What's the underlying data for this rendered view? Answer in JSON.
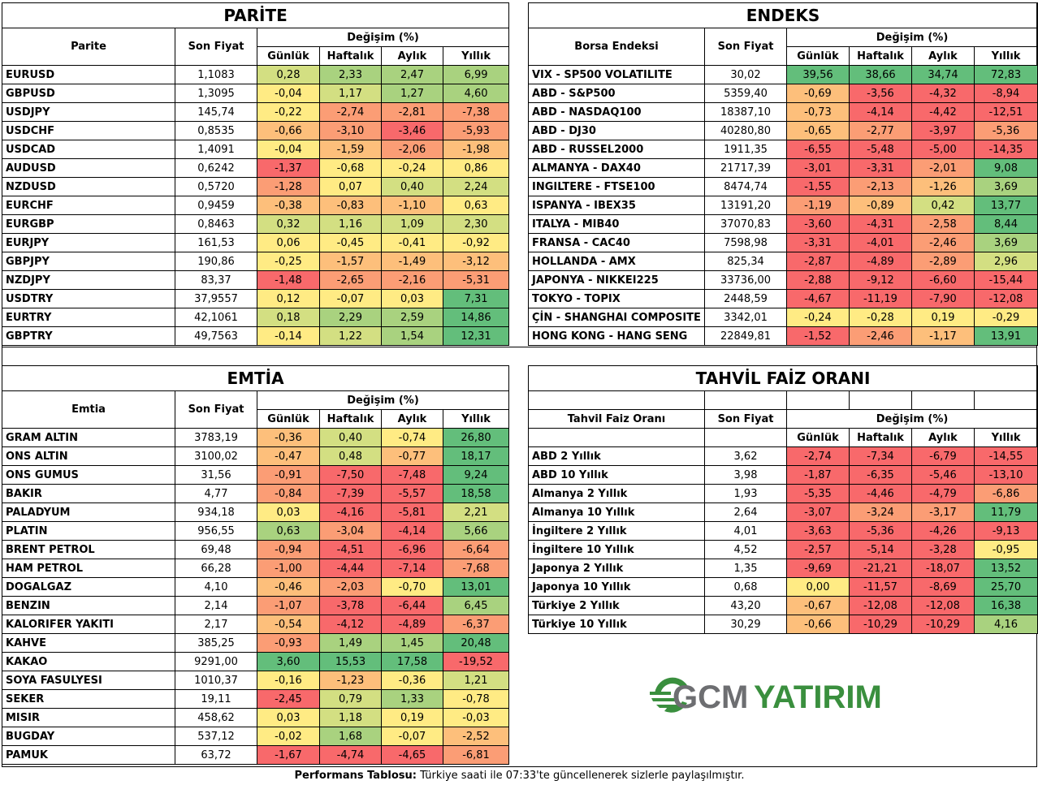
{
  "colors": {
    "strong_green": "#63be7b",
    "green": "#a9d27f",
    "light_green": "#d3df82",
    "yellow": "#ffeb84",
    "orange": "#fdbf7b",
    "dark_orange": "#fb9d75",
    "red": "#f8696b"
  },
  "headers": {
    "last_price": "Son Fiyat",
    "change": "Değişim (%)",
    "daily": "Günlük",
    "weekly": "Haftalık",
    "monthly": "Aylık",
    "yearly": "Yıllık"
  },
  "parite": {
    "title": "PARİTE",
    "col_name": "Parite",
    "rows": [
      {
        "name": "EURUSD",
        "price": "1,1083",
        "d": "0,28",
        "w": "2,33",
        "m": "2,47",
        "y": "6,99"
      },
      {
        "name": "GBPUSD",
        "price": "1,3095",
        "d": "-0,04",
        "w": "1,17",
        "m": "1,27",
        "y": "4,60"
      },
      {
        "name": "USDJPY",
        "price": "145,74",
        "d": "-0,22",
        "w": "-2,74",
        "m": "-2,81",
        "y": "-7,38"
      },
      {
        "name": "USDCHF",
        "price": "0,8535",
        "d": "-0,66",
        "w": "-3,10",
        "m": "-3,46",
        "y": "-5,93"
      },
      {
        "name": "USDCAD",
        "price": "1,4091",
        "d": "-0,04",
        "w": "-1,59",
        "m": "-2,06",
        "y": "-1,98"
      },
      {
        "name": "AUDUSD",
        "price": "0,6242",
        "d": "-1,37",
        "w": "-0,68",
        "m": "-0,24",
        "y": "0,86"
      },
      {
        "name": "NZDUSD",
        "price": "0,5720",
        "d": "-1,28",
        "w": "0,07",
        "m": "0,40",
        "y": "2,24"
      },
      {
        "name": "EURCHF",
        "price": "0,9459",
        "d": "-0,38",
        "w": "-0,83",
        "m": "-1,10",
        "y": "0,63"
      },
      {
        "name": "EURGBP",
        "price": "0,8463",
        "d": "0,32",
        "w": "1,16",
        "m": "1,09",
        "y": "2,30"
      },
      {
        "name": "EURJPY",
        "price": "161,53",
        "d": "0,06",
        "w": "-0,45",
        "m": "-0,41",
        "y": "-0,92"
      },
      {
        "name": "GBPJPY",
        "price": "190,86",
        "d": "-0,25",
        "w": "-1,57",
        "m": "-1,49",
        "y": "-3,12"
      },
      {
        "name": "NZDJPY",
        "price": "83,37",
        "d": "-1,48",
        "w": "-2,65",
        "m": "-2,16",
        "y": "-5,31"
      },
      {
        "name": "USDTRY",
        "price": "37,9557",
        "d": "0,12",
        "w": "-0,07",
        "m": "0,03",
        "y": "7,31"
      },
      {
        "name": "EURTRY",
        "price": "42,1061",
        "d": "0,18",
        "w": "2,29",
        "m": "2,59",
        "y": "14,86"
      },
      {
        "name": "GBPTRY",
        "price": "49,7563",
        "d": "-0,14",
        "w": "1,22",
        "m": "1,54",
        "y": "12,31"
      }
    ]
  },
  "endeks": {
    "title": "ENDEKS",
    "col_name": "Borsa Endeksi",
    "rows": [
      {
        "name": "VIX  - SP500 VOLATILITE",
        "price": "30,02",
        "d": "39,56",
        "w": "38,66",
        "m": "34,74",
        "y": "72,83"
      },
      {
        "name": "ABD - S&P500",
        "price": "5359,40",
        "d": "-0,69",
        "w": "-3,56",
        "m": "-4,32",
        "y": "-8,94"
      },
      {
        "name": "ABD - NASDAQ100",
        "price": "18387,10",
        "d": "-0,73",
        "w": "-4,14",
        "m": "-4,42",
        "y": "-12,51"
      },
      {
        "name": "ABD - DJ30",
        "price": "40280,80",
        "d": "-0,65",
        "w": "-2,77",
        "m": "-3,97",
        "y": "-5,36"
      },
      {
        "name": "ABD - RUSSEL2000",
        "price": "1911,35",
        "d": "-6,55",
        "w": "-5,48",
        "m": "-5,00",
        "y": "-14,35"
      },
      {
        "name": "ALMANYA - DAX40",
        "price": "21717,39",
        "d": "-3,01",
        "w": "-3,31",
        "m": "-2,01",
        "y": "9,08"
      },
      {
        "name": "INGILTERE - FTSE100",
        "price": "8474,74",
        "d": "-1,55",
        "w": "-2,13",
        "m": "-1,26",
        "y": "3,69"
      },
      {
        "name": "ISPANYA - IBEX35",
        "price": "13191,20",
        "d": "-1,19",
        "w": "-0,89",
        "m": "0,42",
        "y": "13,77"
      },
      {
        "name": "ITALYA - MIB40",
        "price": "37070,83",
        "d": "-3,60",
        "w": "-4,31",
        "m": "-2,58",
        "y": "8,44"
      },
      {
        "name": "FRANSA - CAC40",
        "price": "7598,98",
        "d": "-3,31",
        "w": "-4,01",
        "m": "-2,46",
        "y": "3,69"
      },
      {
        "name": "HOLLANDA - AMX",
        "price": "825,34",
        "d": "-2,87",
        "w": "-4,89",
        "m": "-2,89",
        "y": "2,96"
      },
      {
        "name": "JAPONYA - NIKKEI225",
        "price": "33736,00",
        "d": "-2,88",
        "w": "-9,12",
        "m": "-6,60",
        "y": "-15,44"
      },
      {
        "name": "TOKYO - TOPIX",
        "price": "2448,59",
        "d": "-4,67",
        "w": "-11,19",
        "m": "-7,90",
        "y": "-12,08"
      },
      {
        "name": "ÇİN - SHANGHAI COMPOSITE",
        "price": "3342,01",
        "d": "-0,24",
        "w": "-0,28",
        "m": "0,19",
        "y": "-0,29"
      },
      {
        "name": "HONG KONG - HANG SENG",
        "price": "22849,81",
        "d": "-1,52",
        "w": "-2,46",
        "m": "-1,17",
        "y": "13,91"
      }
    ]
  },
  "emtia": {
    "title": "EMTİA",
    "col_name": "Emtia",
    "rows": [
      {
        "name": "GRAM ALTIN",
        "price": "3783,19",
        "d": "-0,36",
        "w": "0,40",
        "m": "-0,74",
        "y": "26,80"
      },
      {
        "name": "ONS ALTIN",
        "price": "3100,02",
        "d": "-0,47",
        "w": "0,48",
        "m": "-0,77",
        "y": "18,17"
      },
      {
        "name": "ONS GUMUS",
        "price": "31,56",
        "d": "-0,91",
        "w": "-7,50",
        "m": "-7,48",
        "y": "9,24"
      },
      {
        "name": "BAKIR",
        "price": "4,77",
        "d": "-0,84",
        "w": "-7,39",
        "m": "-5,57",
        "y": "18,58"
      },
      {
        "name": "PALADYUM",
        "price": "934,18",
        "d": "0,03",
        "w": "-4,16",
        "m": "-5,81",
        "y": "2,21"
      },
      {
        "name": "PLATIN",
        "price": "956,55",
        "d": "0,63",
        "w": "-3,04",
        "m": "-4,14",
        "y": "5,66"
      },
      {
        "name": "BRENT PETROL",
        "price": "69,48",
        "d": "-0,94",
        "w": "-4,51",
        "m": "-6,96",
        "y": "-6,64"
      },
      {
        "name": "HAM PETROL",
        "price": "66,28",
        "d": "-1,00",
        "w": "-4,44",
        "m": "-7,14",
        "y": "-7,68"
      },
      {
        "name": "DOGALGAZ",
        "price": "4,10",
        "d": "-0,46",
        "w": "-2,03",
        "m": "-0,70",
        "y": "13,01"
      },
      {
        "name": "BENZIN",
        "price": "2,14",
        "d": "-1,07",
        "w": "-3,78",
        "m": "-6,44",
        "y": "6,45"
      },
      {
        "name": "KALORIFER YAKITI",
        "price": "2,17",
        "d": "-0,54",
        "w": "-4,12",
        "m": "-4,89",
        "y": "-6,37"
      },
      {
        "name": "KAHVE",
        "price": "385,25",
        "d": "-0,93",
        "w": "1,49",
        "m": "1,45",
        "y": "20,48"
      },
      {
        "name": "KAKAO",
        "price": "9291,00",
        "d": "3,60",
        "w": "15,53",
        "m": "17,58",
        "y": "-19,52"
      },
      {
        "name": "SOYA FASULYESI",
        "price": "1010,37",
        "d": "-0,16",
        "w": "-1,23",
        "m": "-0,36",
        "y": "1,21"
      },
      {
        "name": "SEKER",
        "price": "19,11",
        "d": "-2,45",
        "w": "0,79",
        "m": "1,33",
        "y": "-0,78"
      },
      {
        "name": "MISIR",
        "price": "458,62",
        "d": "0,03",
        "w": "1,18",
        "m": "0,19",
        "y": "-0,03"
      },
      {
        "name": "BUGDAY",
        "price": "537,12",
        "d": "-0,02",
        "w": "1,68",
        "m": "-0,07",
        "y": "-2,52"
      },
      {
        "name": "PAMUK",
        "price": "63,72",
        "d": "-1,67",
        "w": "-4,74",
        "m": "-4,65",
        "y": "-6,81"
      }
    ]
  },
  "tahvil": {
    "title": "TAHVİL FAİZ ORANI",
    "col_name": "Tahvil Faiz Oranı",
    "rows": [
      {
        "name": "ABD 2 Yıllık",
        "price": "3,62",
        "d": "-2,74",
        "w": "-7,34",
        "m": "-6,79",
        "y": "-14,55"
      },
      {
        "name": "ABD 10 Yıllık",
        "price": "3,98",
        "d": "-1,87",
        "w": "-6,35",
        "m": "-5,46",
        "y": "-13,10"
      },
      {
        "name": "Almanya 2 Yıllık",
        "price": "1,93",
        "d": "-5,35",
        "w": "-4,46",
        "m": "-4,79",
        "y": "-6,86"
      },
      {
        "name": "Almanya 10 Yıllık",
        "price": "2,64",
        "d": "-3,07",
        "w": "-3,24",
        "m": "-3,17",
        "y": "11,79"
      },
      {
        "name": "İngiltere 2 Yıllık",
        "price": "4,01",
        "d": "-3,63",
        "w": "-5,36",
        "m": "-4,26",
        "y": "-9,13"
      },
      {
        "name": "İngiltere 10 Yıllık",
        "price": "4,52",
        "d": "-2,57",
        "w": "-5,14",
        "m": "-3,28",
        "y": "-0,95"
      },
      {
        "name": "Japonya 2 Yıllık",
        "price": "1,35",
        "d": "-9,69",
        "w": "-21,21",
        "m": "-18,07",
        "y": "13,52"
      },
      {
        "name": "Japonya 10 Yıllık",
        "price": "0,68",
        "d": "0,00",
        "w": "-11,57",
        "m": "-8,69",
        "y": "25,70"
      },
      {
        "name": "Türkiye 2 Yıllık",
        "price": "43,20",
        "d": "-0,67",
        "w": "-12,08",
        "m": "-12,08",
        "y": "16,38"
      },
      {
        "name": "Türkiye 10 Yıllık",
        "price": "30,29",
        "d": "-0,66",
        "w": "-10,29",
        "m": "-10,29",
        "y": "4,16"
      }
    ]
  },
  "logo": {
    "text": "GCMYATIRIM",
    "part1": "GCM",
    "part2": "YATIRIM"
  },
  "footer": {
    "bold": "Performans Tablosu:",
    "text": " Türkiye saati ile 07:33'te güncellenerek sizlerle paylaşılmıştır."
  }
}
